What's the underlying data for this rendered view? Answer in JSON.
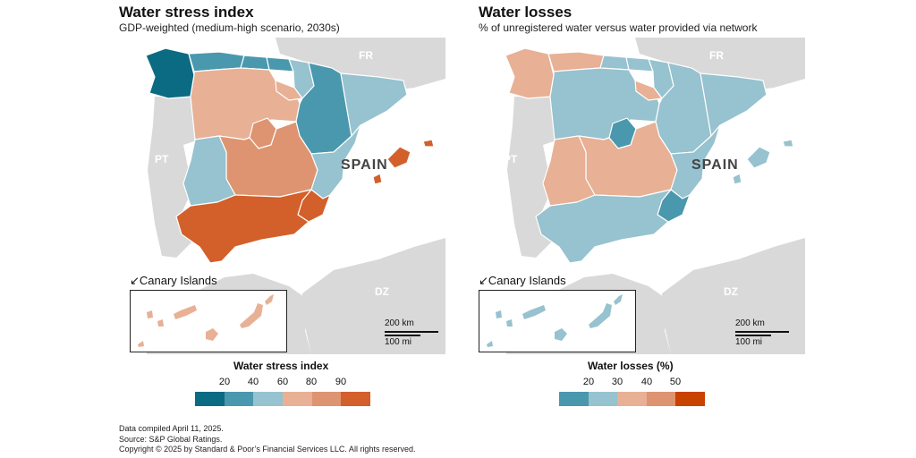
{
  "colors": {
    "c1": "#0b6b82",
    "c2": "#4a98ad",
    "c3": "#97c2cf",
    "c4": "#e8b095",
    "c5": "#de9470",
    "c6": "#d35f2a",
    "c7": "#c84200",
    "neighbor": "#d9d9d9",
    "sea": "#ffffff"
  },
  "left": {
    "title": "Water stress index",
    "subtitle": "GDP-weighted (medium-high scenario, 2030s)",
    "country_label": "SPAIN",
    "neighbor_labels": {
      "fr": "FR",
      "pt": "PT",
      "dz": "DZ"
    },
    "canary_label": "↙Canary Islands",
    "scale_km": "200 km",
    "scale_mi": "100 mi",
    "legend_title": "Water stress index",
    "legend_ticks": [
      "20",
      "40",
      "60",
      "80",
      "90"
    ],
    "legend_colors": [
      "#0b6b82",
      "#4a98ad",
      "#97c2cf",
      "#e8b095",
      "#de9470",
      "#d35f2a"
    ],
    "regions": {
      "galicia": "c1",
      "asturias": "c2",
      "cantabria": "c2",
      "basque": "c2",
      "navarra": "c3",
      "castilla_leon": "c4",
      "la_rioja": "c4",
      "aragon": "c2",
      "catalonia": "c3",
      "madrid": "c5",
      "castilla_la_mancha": "c5",
      "extremadura": "c3",
      "valencia": "c3",
      "murcia": "c6",
      "andalusia": "c6",
      "balearic": "c6",
      "canary": "c4"
    }
  },
  "right": {
    "title": "Water losses",
    "subtitle": "% of unregistered water versus water provided via network",
    "country_label": "SPAIN",
    "neighbor_labels": {
      "fr": "FR",
      "pt": "PT",
      "dz": "DZ"
    },
    "canary_label": "↙Canary Islands",
    "scale_km": "200 km",
    "scale_mi": "100 mi",
    "legend_title": "Water losses (%)",
    "legend_ticks": [
      "20",
      "30",
      "40",
      "50"
    ],
    "legend_colors": [
      "#4a98ad",
      "#97c2cf",
      "#e8b095",
      "#de9470",
      "#c84200"
    ],
    "regions": {
      "galicia": "c4",
      "asturias": "c4",
      "cantabria": "c3",
      "basque": "c3",
      "navarra": "c3",
      "castilla_leon": "c3",
      "la_rioja": "c4",
      "aragon": "c3",
      "catalonia": "c3",
      "madrid": "c2",
      "castilla_la_mancha": "c4",
      "extremadura": "c4",
      "valencia": "c3",
      "murcia": "c2",
      "andalusia": "c3",
      "balearic": "c3",
      "canary": "c3"
    }
  },
  "footer": {
    "line1": "Data compiled April 11, 2025.",
    "line2": "Source: S&P Global Ratings.",
    "line3": "Copyright © 2025 by Standard & Poor’s Financial Services LLC. All rights reserved."
  }
}
